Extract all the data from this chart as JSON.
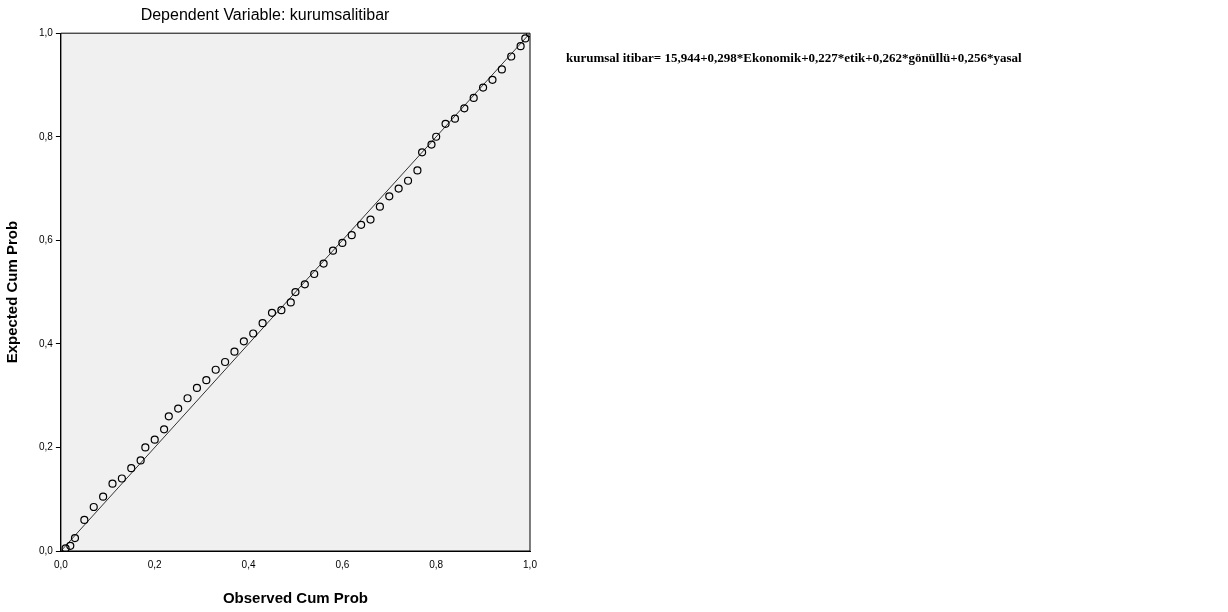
{
  "chart_data": {
    "type": "scatter",
    "title": "Dependent Variable: kurumsalitibar",
    "xlabel": "Observed Cum Prob",
    "ylabel": "Expected Cum Prob",
    "xlim": [
      0,
      1
    ],
    "ylim": [
      0,
      1
    ],
    "xticks": [
      {
        "value": 0,
        "label": "0,0"
      },
      {
        "value": 0.2,
        "label": "0,2"
      },
      {
        "value": 0.4,
        "label": "0,4"
      },
      {
        "value": 0.6,
        "label": "0,6"
      },
      {
        "value": 0.8,
        "label": "0,8"
      },
      {
        "value": 1,
        "label": "1,0"
      }
    ],
    "yticks": [
      {
        "value": 0,
        "label": "0,0"
      },
      {
        "value": 0.2,
        "label": "0,2"
      },
      {
        "value": 0.4,
        "label": "0,4"
      },
      {
        "value": 0.6,
        "label": "0,6"
      },
      {
        "value": 0.8,
        "label": "0,8"
      },
      {
        "value": 1,
        "label": "1,0"
      }
    ],
    "grid": false,
    "legend": false,
    "marker": "circle",
    "annotations": [
      "kurumsal itibar= 15,944+0,298*Ekonomik+0,227*etik+0,262*gönüllü+0,256*yasal"
    ],
    "series": [
      {
        "color": "#000000",
        "x": [
          0.01,
          0.02,
          0.03,
          0.05,
          0.07,
          0.09,
          0.11,
          0.13,
          0.15,
          0.17,
          0.18,
          0.2,
          0.22,
          0.23,
          0.25,
          0.27,
          0.29,
          0.31,
          0.33,
          0.35,
          0.37,
          0.39,
          0.41,
          0.43,
          0.45,
          0.47,
          0.49,
          0.5,
          0.52,
          0.54,
          0.56,
          0.58,
          0.6,
          0.62,
          0.64,
          0.66,
          0.68,
          0.7,
          0.72,
          0.74,
          0.76,
          0.77,
          0.79,
          0.8,
          0.82,
          0.84,
          0.86,
          0.88,
          0.9,
          0.92,
          0.94,
          0.96,
          0.98,
          0.99,
          1
        ],
        "values": [
          0.005,
          0.01,
          0.025,
          0.06,
          0.085,
          0.105,
          0.13,
          0.14,
          0.16,
          0.175,
          0.2,
          0.215,
          0.235,
          0.26,
          0.275,
          0.295,
          0.315,
          0.33,
          0.35,
          0.365,
          0.385,
          0.405,
          0.42,
          0.44,
          0.46,
          0.465,
          0.48,
          0.5,
          0.515,
          0.535,
          0.555,
          0.58,
          0.595,
          0.61,
          0.63,
          0.64,
          0.665,
          0.685,
          0.7,
          0.715,
          0.735,
          0.77,
          0.785,
          0.8,
          0.825,
          0.835,
          0.855,
          0.875,
          0.895,
          0.91,
          0.93,
          0.955,
          0.975,
          0.99,
          1
        ]
      },
      {
        "type": "line",
        "color": "#333333",
        "x": [
          0,
          1
        ],
        "values": [
          0,
          1
        ],
        "marker": "none",
        "line_style": "solid"
      }
    ]
  }
}
